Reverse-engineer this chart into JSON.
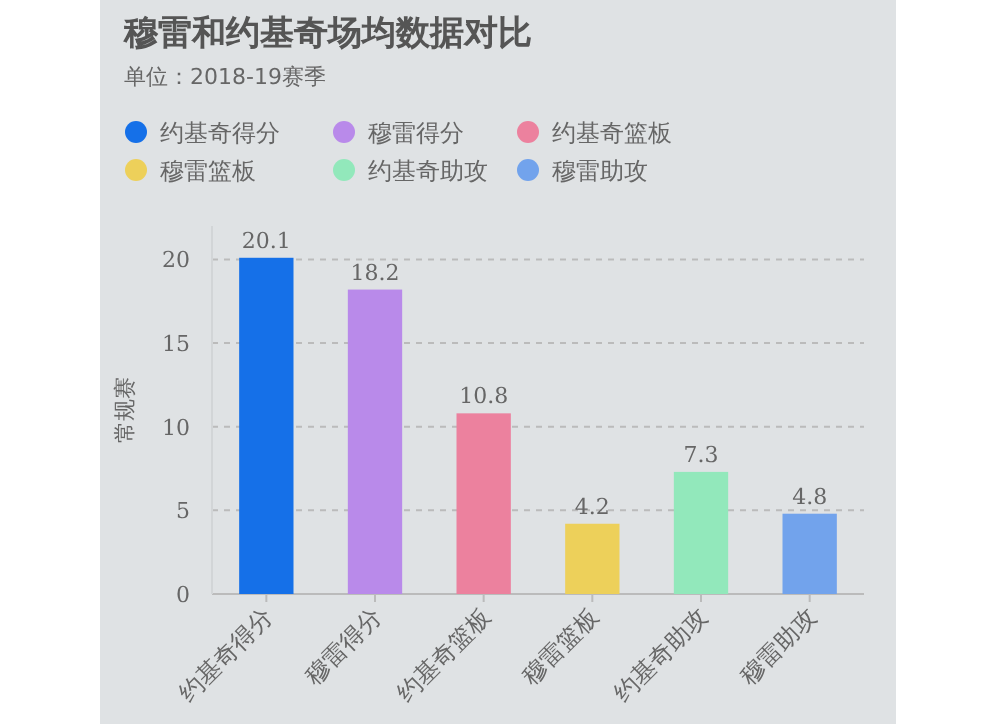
{
  "chart_data": {
    "type": "bar",
    "title": "穆雷和约基奇场均数据对比",
    "subtitle": "单位：2018-19赛季",
    "ylabel": "常规赛",
    "categories": [
      "约基奇得分",
      "穆雷得分",
      "约基奇篮板",
      "穆雷篮板",
      "约基奇助攻",
      "穆雷助攻"
    ],
    "series": [
      {
        "name": "约基奇得分",
        "color": "#1570e8",
        "values": [
          20.1,
          null,
          null,
          null,
          null,
          null
        ]
      },
      {
        "name": "穆雷得分",
        "color": "#b98aea",
        "values": [
          null,
          18.2,
          null,
          null,
          null,
          null
        ]
      },
      {
        "name": "约基奇篮板",
        "color": "#ec819e",
        "values": [
          null,
          null,
          10.8,
          null,
          null,
          null
        ]
      },
      {
        "name": "穆雷篮板",
        "color": "#edd05a",
        "values": [
          null,
          null,
          null,
          4.2,
          null,
          null
        ]
      },
      {
        "name": "约基奇助攻",
        "color": "#92e8bb",
        "values": [
          null,
          null,
          null,
          null,
          7.3,
          null
        ]
      },
      {
        "name": "穆雷助攻",
        "color": "#72a3ec",
        "values": [
          null,
          null,
          null,
          null,
          null,
          4.8
        ]
      }
    ],
    "ylim": [
      0,
      22
    ],
    "yticks": [
      0,
      5,
      10,
      15,
      20
    ],
    "grid": "y",
    "legend": "top",
    "data_labels": true
  }
}
